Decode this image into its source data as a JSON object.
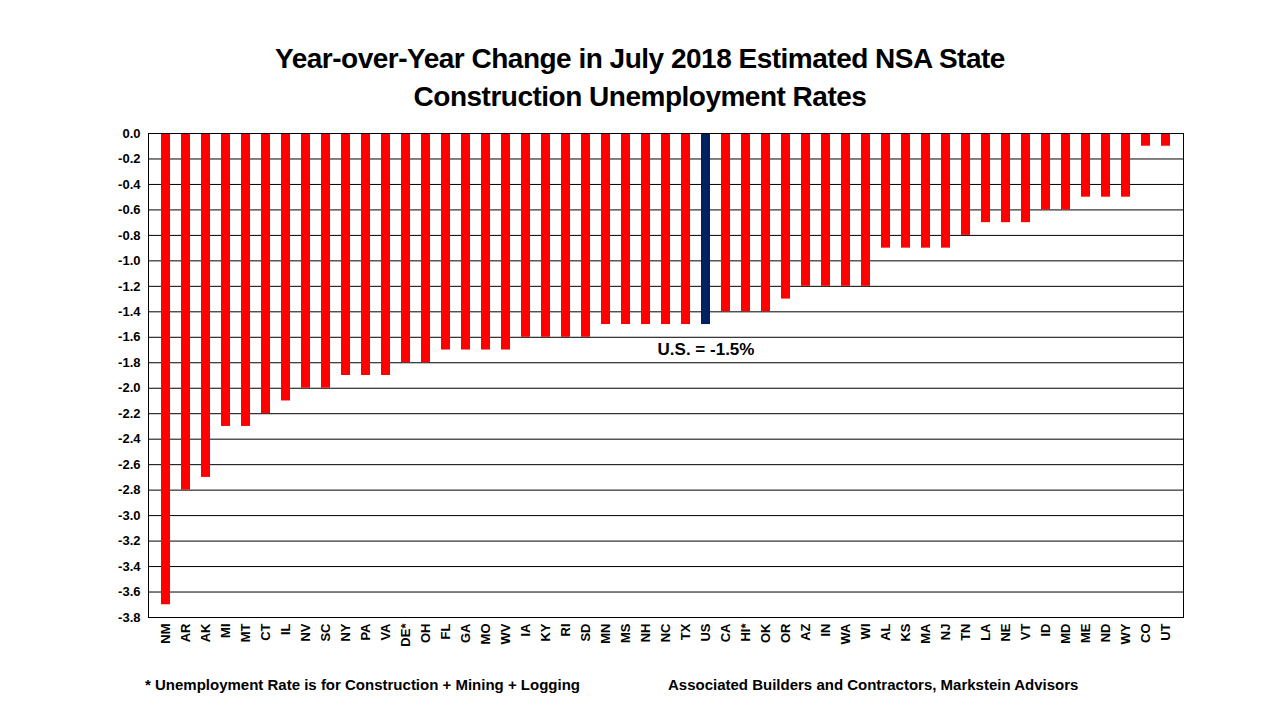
{
  "chart_data": {
    "type": "bar",
    "title": "Year-over-Year Change in July 2018 Estimated NSA State\nConstruction Unemployment Rates",
    "categories": [
      "NM",
      "AR",
      "AK",
      "MI",
      "MT",
      "CT",
      "IL",
      "NV",
      "SC",
      "NY",
      "PA",
      "VA",
      "DE*",
      "OH",
      "FL",
      "GA",
      "MO",
      "WV",
      "IA",
      "KY",
      "RI",
      "SD",
      "MN",
      "MS",
      "NH",
      "NC",
      "TX",
      "US",
      "CA",
      "HI*",
      "OK",
      "OR",
      "AZ",
      "IN",
      "WA",
      "WI",
      "AL",
      "KS",
      "MA",
      "NJ",
      "TN",
      "LA",
      "NE",
      "VT",
      "ID",
      "MD",
      "ME",
      "ND",
      "WY",
      "CO",
      "UT"
    ],
    "values": [
      -3.7,
      -2.8,
      -2.7,
      -2.3,
      -2.3,
      -2.2,
      -2.1,
      -2.0,
      -2.0,
      -1.9,
      -1.9,
      -1.9,
      -1.8,
      -1.8,
      -1.7,
      -1.7,
      -1.7,
      -1.7,
      -1.6,
      -1.6,
      -1.6,
      -1.6,
      -1.5,
      -1.5,
      -1.5,
      -1.5,
      -1.5,
      -1.5,
      -1.4,
      -1.4,
      -1.4,
      -1.3,
      -1.2,
      -1.2,
      -1.2,
      -1.2,
      -0.9,
      -0.9,
      -0.9,
      -0.9,
      -0.8,
      -0.7,
      -0.7,
      -0.7,
      -0.6,
      -0.6,
      -0.5,
      -0.5,
      -0.5,
      -0.1,
      -0.1
    ],
    "colors": [
      "#ff0000",
      "#ff0000",
      "#ff0000",
      "#ff0000",
      "#ff0000",
      "#ff0000",
      "#ff0000",
      "#ff0000",
      "#ff0000",
      "#ff0000",
      "#ff0000",
      "#ff0000",
      "#ff0000",
      "#ff0000",
      "#ff0000",
      "#ff0000",
      "#ff0000",
      "#ff0000",
      "#ff0000",
      "#ff0000",
      "#ff0000",
      "#ff0000",
      "#ff0000",
      "#ff0000",
      "#ff0000",
      "#ff0000",
      "#ff0000",
      "#002060",
      "#ff0000",
      "#ff0000",
      "#ff0000",
      "#ff0000",
      "#ff0000",
      "#ff0000",
      "#ff0000",
      "#ff0000",
      "#ff0000",
      "#ff0000",
      "#ff0000",
      "#ff0000",
      "#ff0000",
      "#ff0000",
      "#ff0000",
      "#ff0000",
      "#ff0000",
      "#ff0000",
      "#ff0000",
      "#ff0000",
      "#ff0000",
      "#ff0000",
      "#ff0000"
    ],
    "ylim": [
      -3.8,
      0
    ],
    "yticks": [
      {
        "value": 0,
        "label": "0.0"
      },
      -0.2,
      -0.4,
      -0.6,
      -0.8,
      {
        "value": -1,
        "label": "-1.0"
      },
      -1.2,
      -1.4,
      -1.6,
      -1.8,
      {
        "value": -2,
        "label": "-2.0"
      },
      -2.2,
      -2.4,
      -2.6,
      -2.8,
      {
        "value": -3,
        "label": "-3.0"
      },
      -3.2,
      -3.4,
      -3.6,
      -3.8
    ],
    "grid": true,
    "annotations": [
      {
        "text": "U.S. = -1.5%",
        "x": "US",
        "y": -1.7
      }
    ],
    "footnote": "* Unemployment Rate is for Construction + Mining + Logging",
    "source": "Associated Builders and Contractors, Markstein Advisors"
  }
}
